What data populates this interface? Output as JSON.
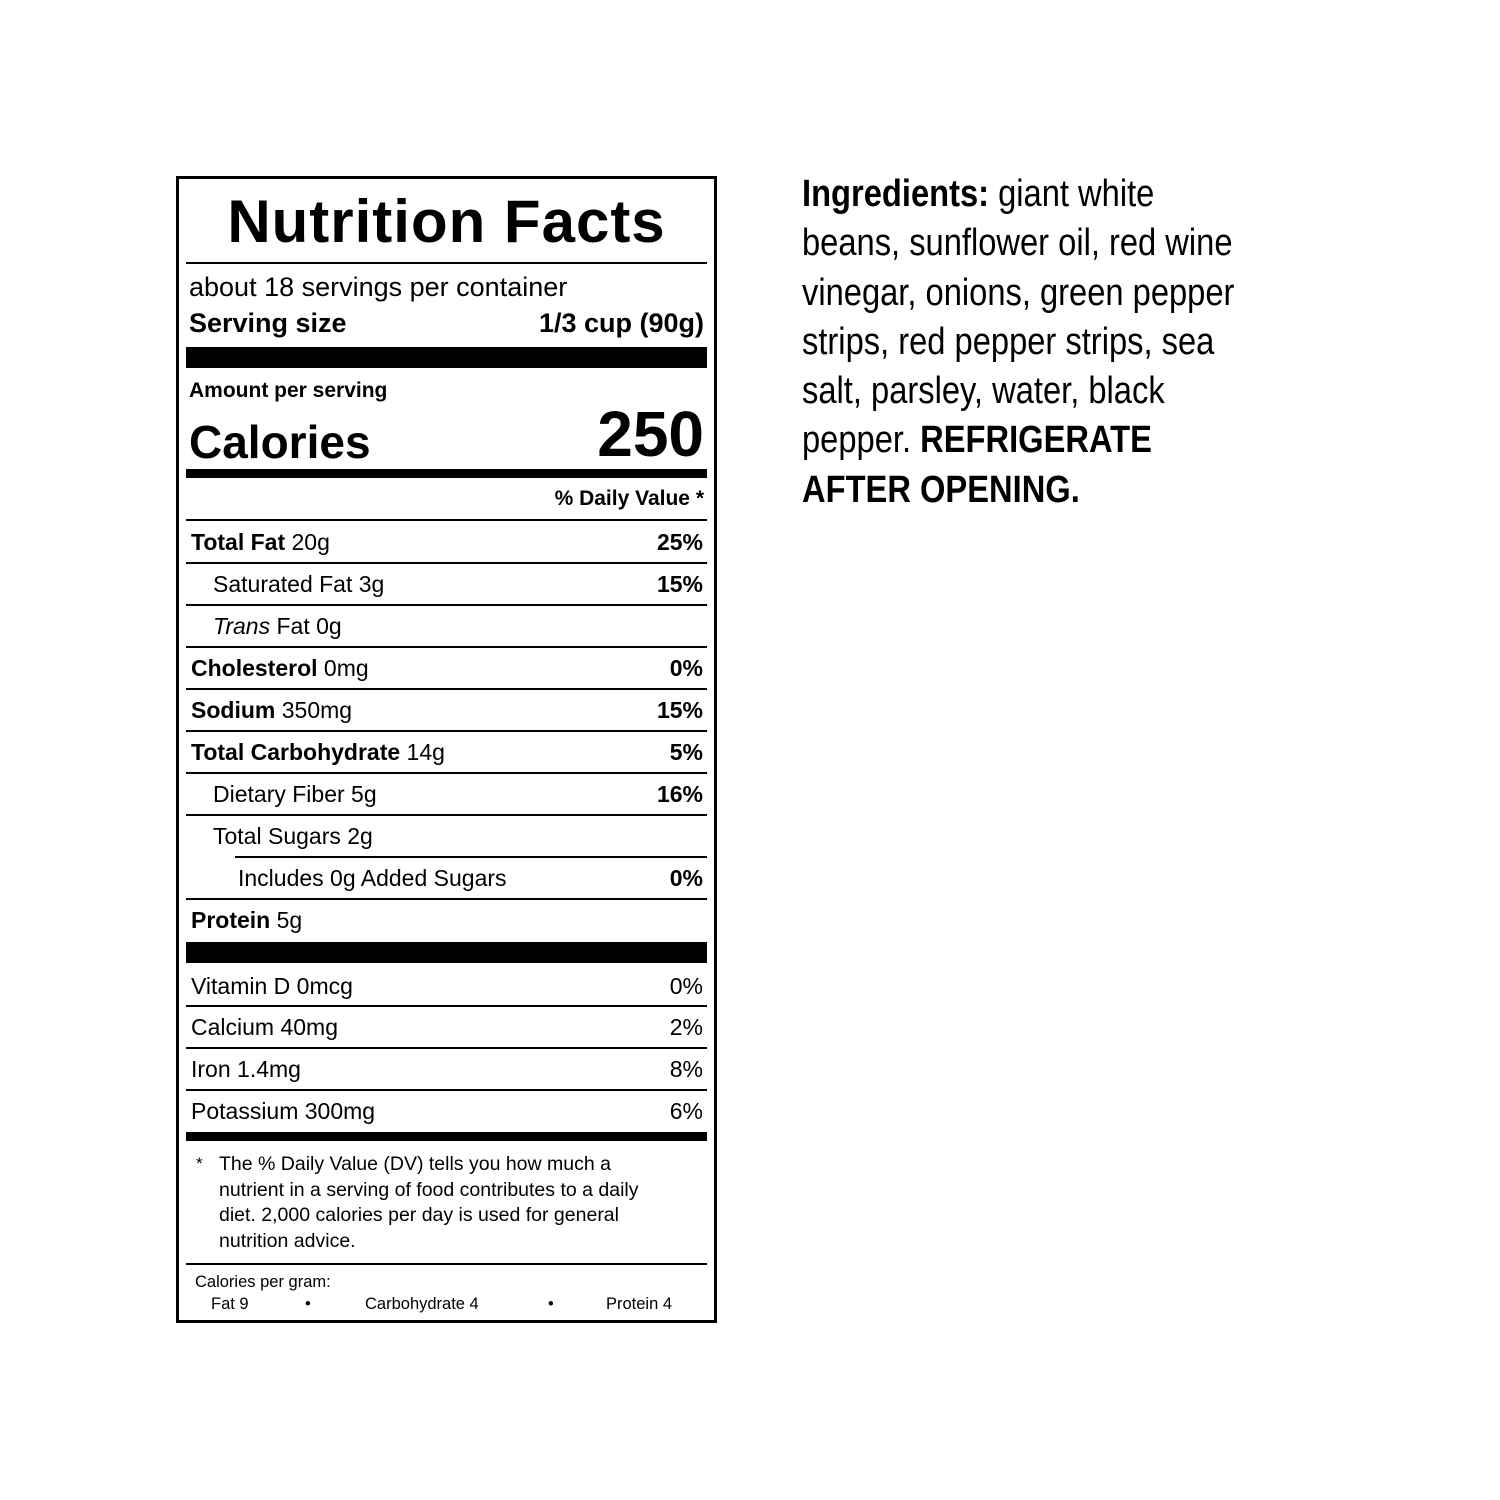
{
  "label": {
    "title": "Nutrition Facts",
    "servings": "about 18 servings per container",
    "serving_size_label": "Serving size",
    "serving_size_value": "1/3 cup (90g)",
    "amount_per_serving": "Amount per serving",
    "calories_label": "Calories",
    "calories_value": "250",
    "dv_header": "% Daily Value *",
    "nutrients": [
      {
        "name": "Total Fat",
        "amount": " 20g",
        "dv": "25%"
      },
      {
        "name": "Saturated Fat 3g",
        "amount": "",
        "dv": "15%"
      },
      {
        "name": "Trans",
        "amount": " Fat 0g",
        "dv": ""
      },
      {
        "name": "Cholesterol",
        "amount": " 0mg",
        "dv": "0%"
      },
      {
        "name": "Sodium",
        "amount": " 350mg",
        "dv": "15%"
      },
      {
        "name": "Total Carbohydrate",
        "amount": " 14g",
        "dv": "5%"
      },
      {
        "name": "Dietary Fiber 5g",
        "amount": "",
        "dv": "16%"
      },
      {
        "name": "Total Sugars 2g",
        "amount": "",
        "dv": ""
      },
      {
        "name": "Includes 0g Added Sugars",
        "amount": "",
        "dv": "0%"
      },
      {
        "name": "Protein",
        "amount": " 5g",
        "dv": ""
      }
    ],
    "vitamins": [
      {
        "name": "Vitamin D 0mcg",
        "dv": "0%"
      },
      {
        "name": "Calcium 40mg",
        "dv": "2%"
      },
      {
        "name": "Iron 1.4mg",
        "dv": "8%"
      },
      {
        "name": "Potassium 300mg",
        "dv": "6%"
      }
    ],
    "footnote_mark": "*",
    "footnote": "The % Daily Value (DV) tells you how much a nutrient in a serving of food contributes to a daily diet. 2,000 calories per day is used for general nutrition advice.",
    "cal_per_gram": "Calories per gram:",
    "fat": "Fat 9",
    "carb": "Carbohydrate 4",
    "protein": "Protein 4",
    "bullet": "•"
  },
  "ingredients": {
    "heading": "Ingredients:",
    "lines": [
      "giant white",
      "beans, sunflower oil, red wine",
      "vinegar, onions, green pepper",
      "strips, red pepper strips, sea",
      "salt, parsley, water, black",
      "pepper."
    ],
    "warning_1": "REFRIGERATE",
    "warning_2": "AFTER OPENING."
  }
}
